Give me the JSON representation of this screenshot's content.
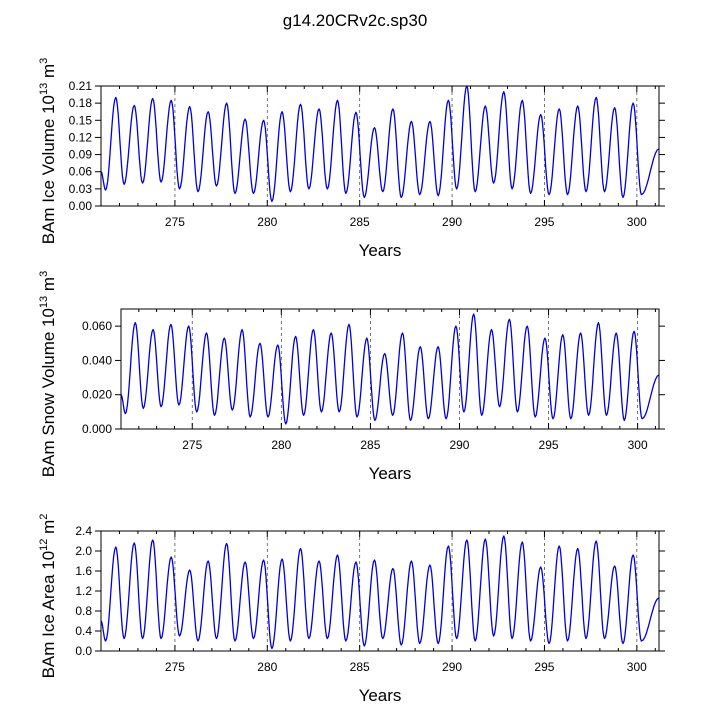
{
  "title": "g14.20CRv2c.sp30",
  "chart_data": [
    {
      "type": "line",
      "name": "ice-volume",
      "ylabel_main": "BAm Ice Volume 10",
      "ylabel_exp": "13",
      "ylabel_unit": " m",
      "ylabel_unit_exp": "3",
      "xlabel": "Years",
      "xlim": [
        271,
        301.2
      ],
      "ylim": [
        0,
        0.21
      ],
      "xticks": [
        275,
        280,
        285,
        290,
        295,
        300
      ],
      "xtick_labels": [
        "275",
        "280",
        "285",
        "290",
        "295",
        "300"
      ],
      "yticks": [
        0,
        0.03,
        0.06,
        0.09,
        0.12,
        0.15,
        0.18,
        0.21
      ],
      "ytick_labels": [
        "0.00",
        "0.03",
        "0.06",
        "0.09",
        "0.12",
        "0.15",
        "0.18",
        "0.21"
      ],
      "dashed_x": [
        275,
        280,
        285,
        290,
        295,
        300
      ],
      "series": [
        {
          "name": "BAm Ice Volume",
          "color": "#0000e0",
          "start": 0.06,
          "peaks": [
            0.19,
            0.176,
            0.188,
            0.185,
            0.174,
            0.165,
            0.18,
            0.152,
            0.15,
            0.165,
            0.178,
            0.17,
            0.185,
            0.164,
            0.137,
            0.17,
            0.148,
            0.148,
            0.185,
            0.21,
            0.175,
            0.2,
            0.185,
            0.16,
            0.17,
            0.175,
            0.19,
            0.172,
            0.18
          ],
          "troughs": [
            0.028,
            0.038,
            0.04,
            0.042,
            0.03,
            0.025,
            0.035,
            0.022,
            0.022,
            0.008,
            0.025,
            0.03,
            0.03,
            0.022,
            0.015,
            0.025,
            0.015,
            0.02,
            0.018,
            0.03,
            0.025,
            0.04,
            0.03,
            0.022,
            0.02,
            0.02,
            0.025,
            0.025,
            0.015,
            0.02
          ]
        }
      ]
    },
    {
      "type": "line",
      "name": "snow-volume",
      "ylabel_main": "BAm Snow Volume 10",
      "ylabel_exp": "13",
      "ylabel_unit": " m",
      "ylabel_unit_exp": "3",
      "xlabel": "Years",
      "xlim": [
        271,
        301.2
      ],
      "ylim": [
        0,
        0.07
      ],
      "xticks": [
        275,
        280,
        285,
        290,
        295,
        300
      ],
      "xtick_labels": [
        "275",
        "280",
        "285",
        "290",
        "295",
        "300"
      ],
      "yticks": [
        0,
        0.02,
        0.04,
        0.06
      ],
      "ytick_labels": [
        "0.000",
        "0.020",
        "0.040",
        "0.060"
      ],
      "dashed_x": [
        275,
        280,
        285,
        290,
        295,
        300
      ],
      "series": [
        {
          "name": "BAm Snow Volume",
          "color": "#0000e0",
          "start": 0.02,
          "peaks": [
            0.062,
            0.058,
            0.061,
            0.06,
            0.056,
            0.053,
            0.058,
            0.05,
            0.049,
            0.054,
            0.058,
            0.056,
            0.061,
            0.053,
            0.044,
            0.056,
            0.048,
            0.048,
            0.06,
            0.067,
            0.058,
            0.064,
            0.06,
            0.053,
            0.055,
            0.056,
            0.062,
            0.056,
            0.057
          ],
          "troughs": [
            0.009,
            0.012,
            0.013,
            0.014,
            0.01,
            0.008,
            0.011,
            0.007,
            0.007,
            0.003,
            0.008,
            0.01,
            0.01,
            0.007,
            0.005,
            0.008,
            0.005,
            0.006,
            0.006,
            0.01,
            0.008,
            0.013,
            0.01,
            0.007,
            0.006,
            0.006,
            0.008,
            0.008,
            0.005,
            0.006
          ]
        }
      ]
    },
    {
      "type": "line",
      "name": "ice-area",
      "ylabel_main": "BAm Ice Area 10",
      "ylabel_exp": "12",
      "ylabel_unit": " m",
      "ylabel_unit_exp": "2",
      "xlabel": "Years",
      "xlim": [
        271,
        301.2
      ],
      "ylim": [
        0,
        2.4
      ],
      "xticks": [
        275,
        280,
        285,
        290,
        295,
        300
      ],
      "xtick_labels": [
        "275",
        "280",
        "285",
        "290",
        "295",
        "300"
      ],
      "yticks": [
        0,
        0.4,
        0.8,
        1.2,
        1.6,
        2.0,
        2.4
      ],
      "ytick_labels": [
        "0.0",
        "0.4",
        "0.8",
        "1.2",
        "1.6",
        "2.0",
        "2.4"
      ],
      "dashed_x": [
        275,
        280,
        285,
        290,
        295,
        300
      ],
      "series": [
        {
          "name": "BAm Ice Area",
          "color": "#0000e0",
          "start": 0.6,
          "peaks": [
            2.08,
            2.16,
            2.22,
            1.88,
            1.62,
            1.8,
            2.15,
            1.78,
            1.82,
            1.84,
            2.05,
            1.8,
            1.92,
            1.78,
            1.82,
            1.65,
            1.8,
            1.72,
            2.1,
            2.22,
            2.24,
            2.3,
            2.18,
            1.68,
            2.1,
            2.05,
            2.2,
            1.7,
            1.92
          ],
          "troughs": [
            0.2,
            0.25,
            0.25,
            0.25,
            0.3,
            0.2,
            0.25,
            0.2,
            0.25,
            0.05,
            0.2,
            0.25,
            0.25,
            0.2,
            0.1,
            0.25,
            0.12,
            0.15,
            0.15,
            0.25,
            0.2,
            0.3,
            0.25,
            0.2,
            0.15,
            0.2,
            0.25,
            0.25,
            0.15,
            0.2
          ]
        }
      ]
    }
  ]
}
